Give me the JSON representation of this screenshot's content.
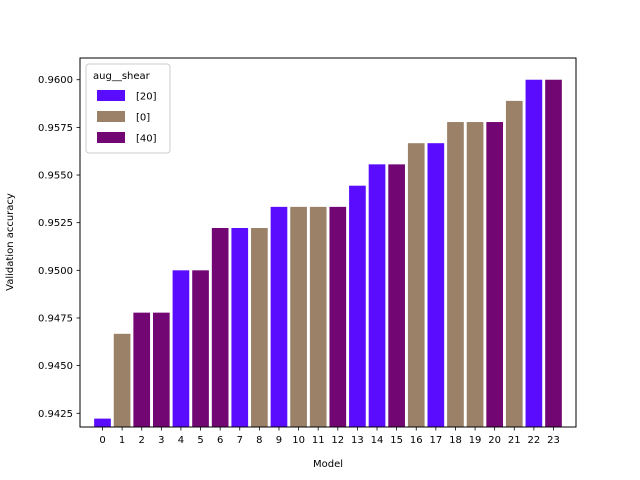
{
  "chart_data": {
    "type": "bar",
    "title": "",
    "xlabel": "Model",
    "ylabel": "Validation accuracy",
    "ylim": [
      0.94178,
      0.96114
    ],
    "yticks": [
      "0.9425",
      "0.9450",
      "0.9475",
      "0.9500",
      "0.9525",
      "0.9550",
      "0.9575",
      "0.9600"
    ],
    "categories": [
      "0",
      "1",
      "2",
      "3",
      "4",
      "5",
      "6",
      "7",
      "8",
      "9",
      "10",
      "11",
      "12",
      "13",
      "14",
      "15",
      "16",
      "17",
      "18",
      "19",
      "20",
      "21",
      "22",
      "23"
    ],
    "values": [
      0.94222,
      0.94667,
      0.94778,
      0.94778,
      0.95,
      0.95,
      0.95222,
      0.95222,
      0.95222,
      0.95333,
      0.95333,
      0.95333,
      0.95333,
      0.95444,
      0.95556,
      0.95556,
      0.95667,
      0.95667,
      0.95778,
      0.95778,
      0.95778,
      0.95889,
      0.96,
      0.96
    ],
    "groups": [
      "[20]",
      "[0]",
      "[40]",
      "[40]",
      "[20]",
      "[40]",
      "[40]",
      "[20]",
      "[0]",
      "[20]",
      "[0]",
      "[0]",
      "[40]",
      "[20]",
      "[20]",
      "[40]",
      "[0]",
      "[20]",
      "[0]",
      "[0]",
      "[40]",
      "[0]",
      "[20]",
      "[40]"
    ],
    "legend": {
      "title": "aug__shear",
      "placement": "upper-left",
      "entries": [
        {
          "label": "[20]",
          "color": "#5a0cff"
        },
        {
          "label": "[0]",
          "color": "#9a8168"
        },
        {
          "label": "[40]",
          "color": "#720773"
        }
      ]
    },
    "grid": false
  }
}
